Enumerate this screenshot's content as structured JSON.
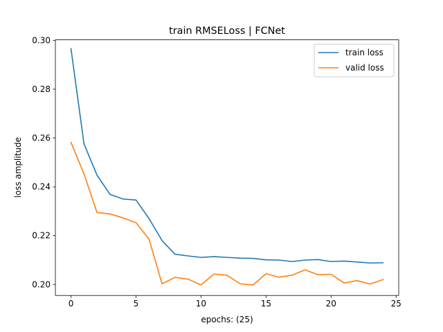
{
  "chart_data": {
    "type": "line",
    "title": "train RMSELoss | FCNet",
    "xlabel": "epochs: (25)",
    "ylabel": "loss amplitude",
    "xlim": [
      -1.2,
      25.2
    ],
    "ylim": [
      0.1955,
      0.3002
    ],
    "xticks": [
      0,
      5,
      10,
      15,
      20,
      25
    ],
    "yticks": [
      0.2,
      0.22,
      0.24,
      0.26,
      0.28,
      0.3
    ],
    "ytick_labels": [
      "0.20",
      "0.22",
      "0.24",
      "0.26",
      "0.28",
      "0.30"
    ],
    "grid": false,
    "legend_position": "top-right",
    "x": [
      0,
      1,
      2,
      3,
      4,
      5,
      6,
      7,
      8,
      9,
      10,
      11,
      12,
      13,
      14,
      15,
      16,
      17,
      18,
      19,
      20,
      21,
      22,
      23,
      24
    ],
    "series": [
      {
        "name": "train loss",
        "color": "#1f77b4",
        "values": [
          0.2966,
          0.2576,
          0.2448,
          0.2369,
          0.235,
          0.2346,
          0.227,
          0.218,
          0.2124,
          0.2117,
          0.2111,
          0.2114,
          0.2111,
          0.2108,
          0.2107,
          0.2101,
          0.21,
          0.2094,
          0.21,
          0.2102,
          0.2094,
          0.2096,
          0.2092,
          0.2088,
          0.2089
        ]
      },
      {
        "name": "valid loss",
        "color": "#ff7f0e",
        "values": [
          0.2582,
          0.2453,
          0.2295,
          0.2289,
          0.2273,
          0.2253,
          0.2186,
          0.2003,
          0.2029,
          0.2022,
          0.1998,
          0.2043,
          0.2038,
          0.2003,
          0.1998,
          0.2044,
          0.203,
          0.2038,
          0.206,
          0.204,
          0.2042,
          0.2006,
          0.2016,
          0.2002,
          0.202
        ]
      }
    ]
  }
}
